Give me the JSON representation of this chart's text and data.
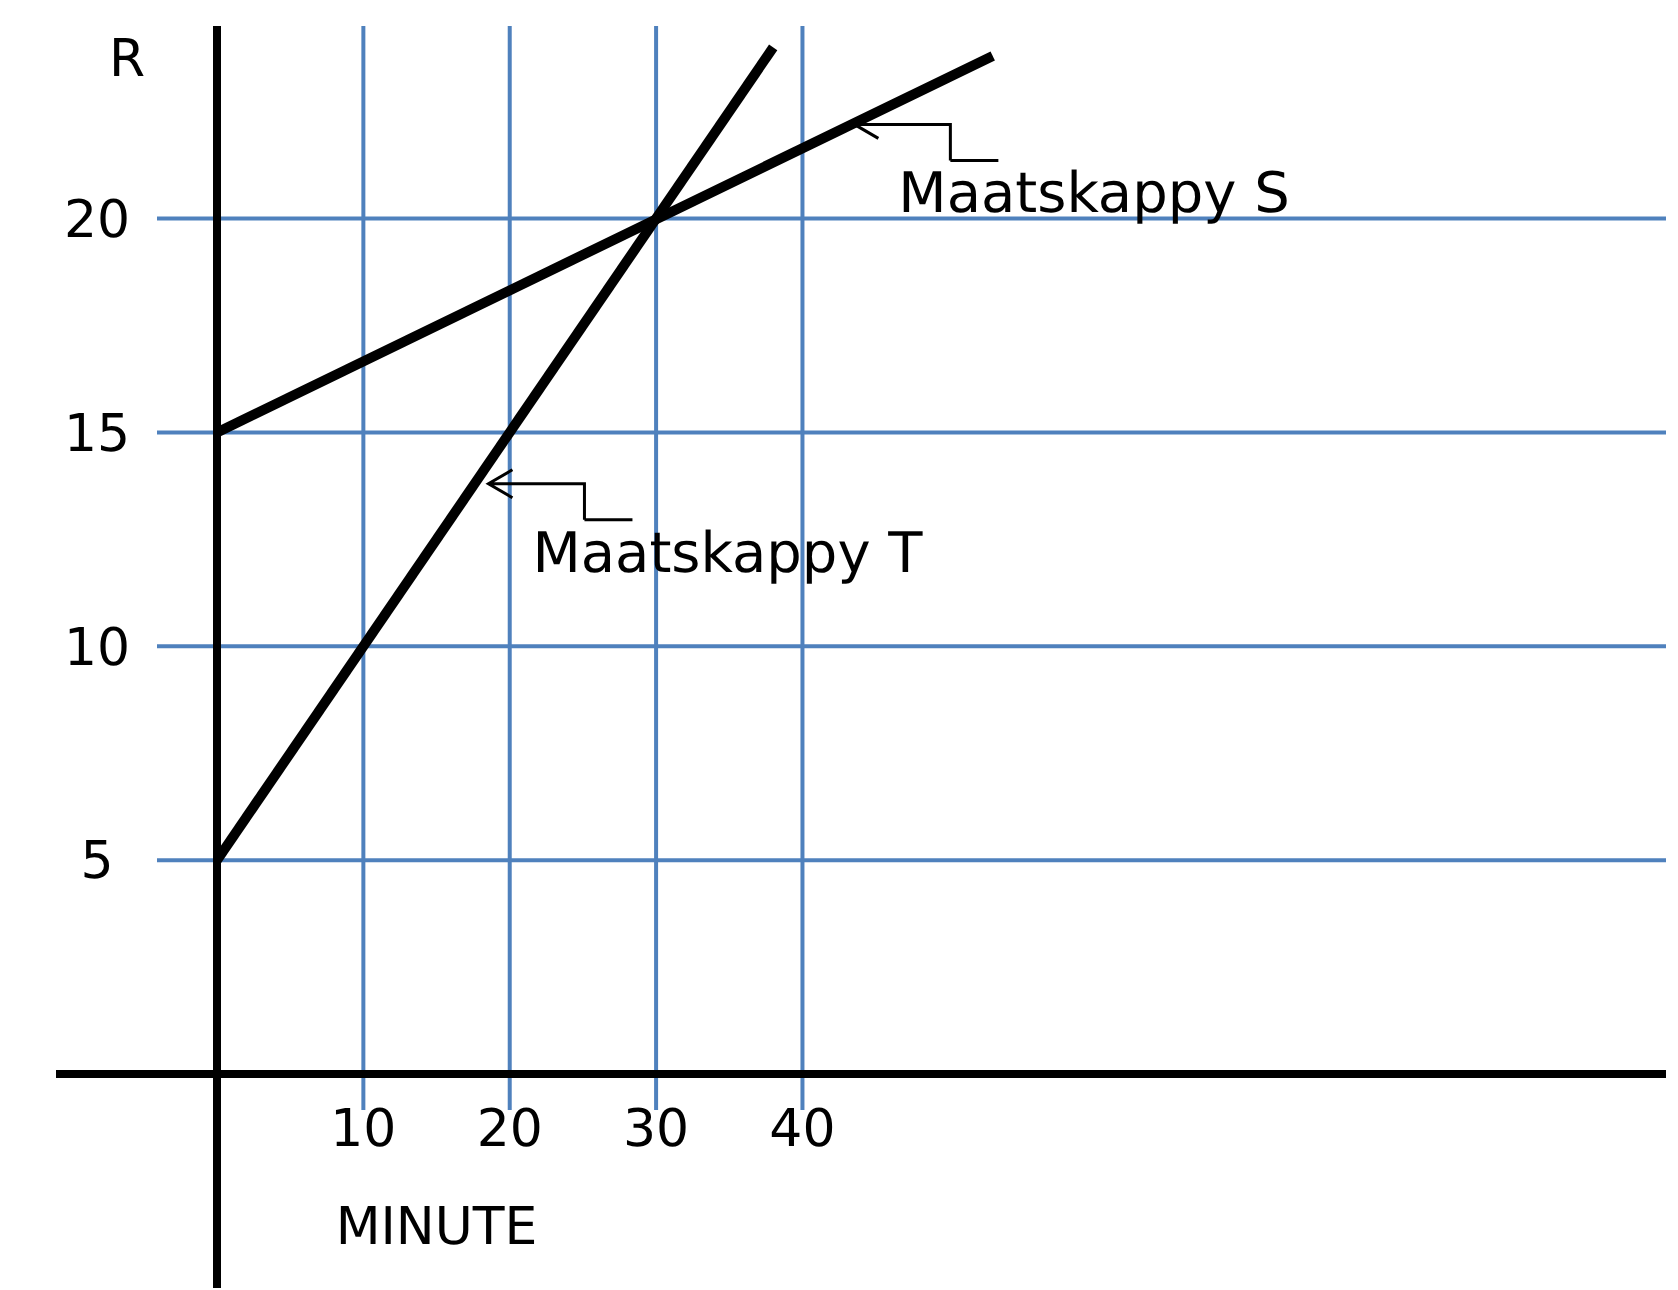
{
  "chart_data": {
    "type": "line",
    "xlabel": "MINUTE",
    "ylabel": "R",
    "xlim": [
      -11,
      99
    ],
    "ylim": [
      -5,
      24.5
    ],
    "xticks": [
      10,
      20,
      30,
      40
    ],
    "yticks": [
      5,
      10,
      15,
      20
    ],
    "grid": true,
    "line_style": "solid",
    "marker": "none",
    "series": [
      {
        "color": "#000000",
        "x": [
          0,
          38
        ],
        "values": [
          5,
          24
        ]
      },
      {
        "color": "#000000",
        "x": [
          0,
          53
        ],
        "values": [
          15,
          23.8
        ]
      }
    ],
    "annotations": [
      {
        "text": "Maatskappy S",
        "x": 43,
        "y": 22.2
      },
      {
        "text": "Maatskappy T",
        "x": 18,
        "y": 13.8
      }
    ]
  }
}
